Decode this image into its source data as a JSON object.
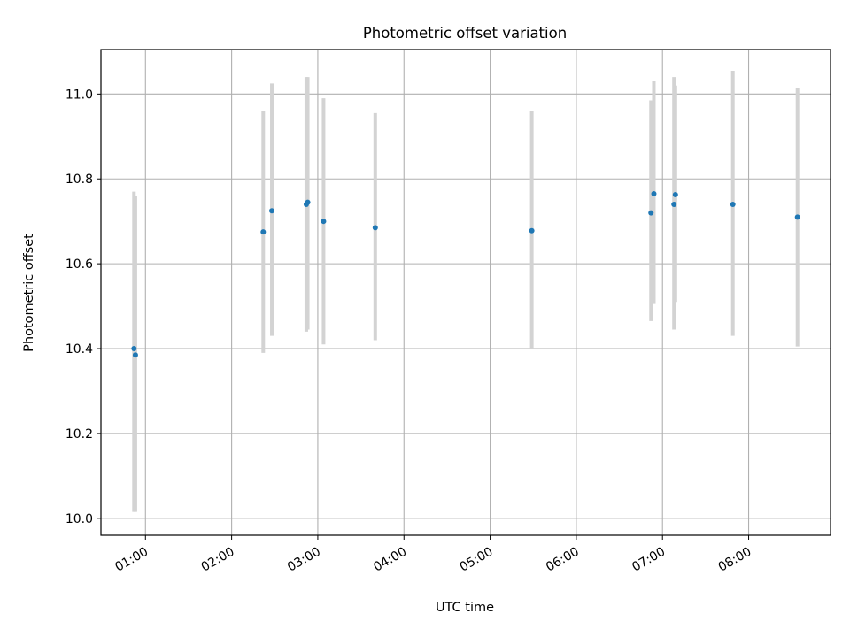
{
  "chart_data": {
    "type": "scatter",
    "title": "Photometric offset variation",
    "xlabel": "UTC time",
    "ylabel": "Photometric offset",
    "x_is_time": true,
    "xlim": [
      "00:29",
      "08:57"
    ],
    "ylim": [
      9.96,
      11.105
    ],
    "x_ticks": [
      "01:00",
      "02:00",
      "03:00",
      "04:00",
      "05:00",
      "06:00",
      "07:00",
      "08:00"
    ],
    "y_ticks": [
      10.0,
      10.2,
      10.4,
      10.6,
      10.8,
      11.0
    ],
    "y_tick_labels": [
      "10.0",
      "10.2",
      "10.4",
      "10.6",
      "10.8",
      "11.0"
    ],
    "grid": true,
    "point_color": "#1f77b4",
    "errorbar_color": "#d3d3d3",
    "series": [
      {
        "points": [
          {
            "x": "00:52",
            "y": 10.4,
            "ylo": 10.015,
            "yhi": 10.77
          },
          {
            "x": "00:53",
            "y": 10.385,
            "ylo": 10.015,
            "yhi": 10.76
          },
          {
            "x": "02:22",
            "y": 10.675,
            "ylo": 10.39,
            "yhi": 10.96
          },
          {
            "x": "02:28",
            "y": 10.725,
            "ylo": 10.43,
            "yhi": 11.025
          },
          {
            "x": "02:52",
            "y": 10.74,
            "ylo": 10.44,
            "yhi": 11.04
          },
          {
            "x": "02:53",
            "y": 10.745,
            "ylo": 10.445,
            "yhi": 11.04
          },
          {
            "x": "03:04",
            "y": 10.7,
            "ylo": 10.41,
            "yhi": 10.99
          },
          {
            "x": "03:40",
            "y": 10.685,
            "ylo": 10.42,
            "yhi": 10.955
          },
          {
            "x": "05:29",
            "y": 10.678,
            "ylo": 10.4,
            "yhi": 10.96
          },
          {
            "x": "06:52",
            "y": 10.72,
            "ylo": 10.465,
            "yhi": 10.985
          },
          {
            "x": "06:54",
            "y": 10.765,
            "ylo": 10.505,
            "yhi": 11.03
          },
          {
            "x": "07:08",
            "y": 10.74,
            "ylo": 10.445,
            "yhi": 11.04
          },
          {
            "x": "07:09",
            "y": 10.763,
            "ylo": 10.51,
            "yhi": 11.02
          },
          {
            "x": "07:49",
            "y": 10.74,
            "ylo": 10.43,
            "yhi": 11.055
          },
          {
            "x": "08:34",
            "y": 10.71,
            "ylo": 10.405,
            "yhi": 11.015
          }
        ]
      }
    ]
  }
}
